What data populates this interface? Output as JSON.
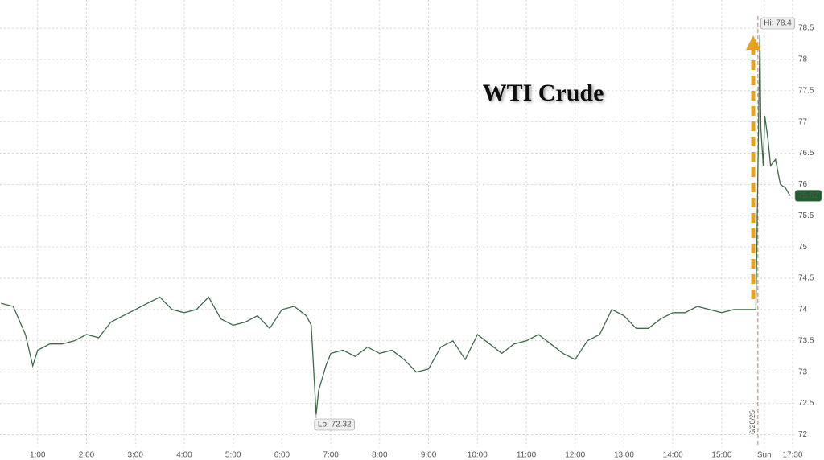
{
  "chart_data": {
    "type": "line",
    "title": "WTI Crude",
    "x": [
      0.25,
      0.5,
      0.75,
      0.9,
      1.0,
      1.25,
      1.5,
      1.75,
      2.0,
      2.25,
      2.5,
      2.75,
      3.0,
      3.25,
      3.5,
      3.75,
      4.0,
      4.25,
      4.5,
      4.75,
      5.0,
      5.25,
      5.5,
      5.75,
      6.0,
      6.25,
      6.5,
      6.6,
      6.7,
      6.75,
      6.9,
      7.0,
      7.25,
      7.5,
      7.75,
      8.0,
      8.25,
      8.5,
      8.75,
      9.0,
      9.25,
      9.5,
      9.75,
      10.0,
      10.25,
      10.5,
      10.75,
      11.0,
      11.25,
      11.5,
      11.75,
      12.0,
      12.25,
      12.5,
      12.75,
      13.0,
      13.25,
      13.5,
      13.75,
      14.0,
      14.25,
      14.5,
      14.75,
      15.0,
      15.25,
      15.5,
      15.7,
      15.78,
      15.8,
      15.85,
      15.88,
      15.95,
      16.0,
      16.1,
      16.2,
      16.3,
      16.4
    ],
    "series": [
      {
        "color": "#3d6b48",
        "values": [
          74.1,
          74.05,
          73.6,
          73.1,
          73.35,
          73.45,
          73.45,
          73.5,
          73.6,
          73.55,
          73.8,
          73.9,
          74.0,
          74.1,
          74.2,
          74.0,
          73.95,
          74.0,
          74.2,
          73.85,
          73.75,
          73.8,
          73.9,
          73.7,
          74.0,
          74.05,
          73.9,
          73.75,
          72.32,
          72.7,
          73.1,
          73.3,
          73.35,
          73.25,
          73.4,
          73.3,
          73.35,
          73.2,
          73.0,
          73.05,
          73.4,
          73.5,
          73.2,
          73.6,
          73.45,
          73.3,
          73.45,
          73.5,
          73.6,
          73.45,
          73.3,
          73.2,
          73.5,
          73.6,
          74.0,
          73.9,
          73.7,
          73.7,
          73.85,
          73.95,
          73.95,
          74.05,
          74.0,
          73.95,
          74.0,
          74.0,
          74.0,
          78.4,
          76.9,
          76.3,
          77.1,
          76.7,
          76.3,
          76.4,
          76.0,
          75.95,
          75.82
        ]
      }
    ],
    "xlim": [
      0.23,
      16.5
    ],
    "xticks": [
      {
        "value": 1,
        "label": "1:00"
      },
      {
        "value": 2,
        "label": "2:00"
      },
      {
        "value": 3,
        "label": "3:00"
      },
      {
        "value": 4,
        "label": "4:00"
      },
      {
        "value": 5,
        "label": "5:00"
      },
      {
        "value": 6,
        "label": "6:00"
      },
      {
        "value": 7,
        "label": "7:00"
      },
      {
        "value": 8,
        "label": "8:00"
      },
      {
        "value": 9,
        "label": "9:00"
      },
      {
        "value": 10,
        "label": "10:00"
      },
      {
        "value": 11,
        "label": "11:00"
      },
      {
        "value": 12,
        "label": "12:00"
      },
      {
        "value": 13,
        "label": "13:00"
      },
      {
        "value": 14,
        "label": "14:00"
      },
      {
        "value": 15,
        "label": "15:00"
      },
      {
        "value": 15.87,
        "label": "Sun"
      },
      {
        "value": 16.45,
        "label": "17:30"
      }
    ],
    "ylim": [
      71.8,
      78.95
    ],
    "yticks": [
      72,
      72.5,
      73,
      73.5,
      74,
      74.5,
      75,
      75.5,
      76,
      76.5,
      77,
      77.5,
      78,
      78.5
    ],
    "grid": true,
    "hi_label": "Hi: 78.4",
    "lo_label": "Lo: 72.32",
    "last_label": "75.82",
    "date_label": "6/20/25"
  }
}
